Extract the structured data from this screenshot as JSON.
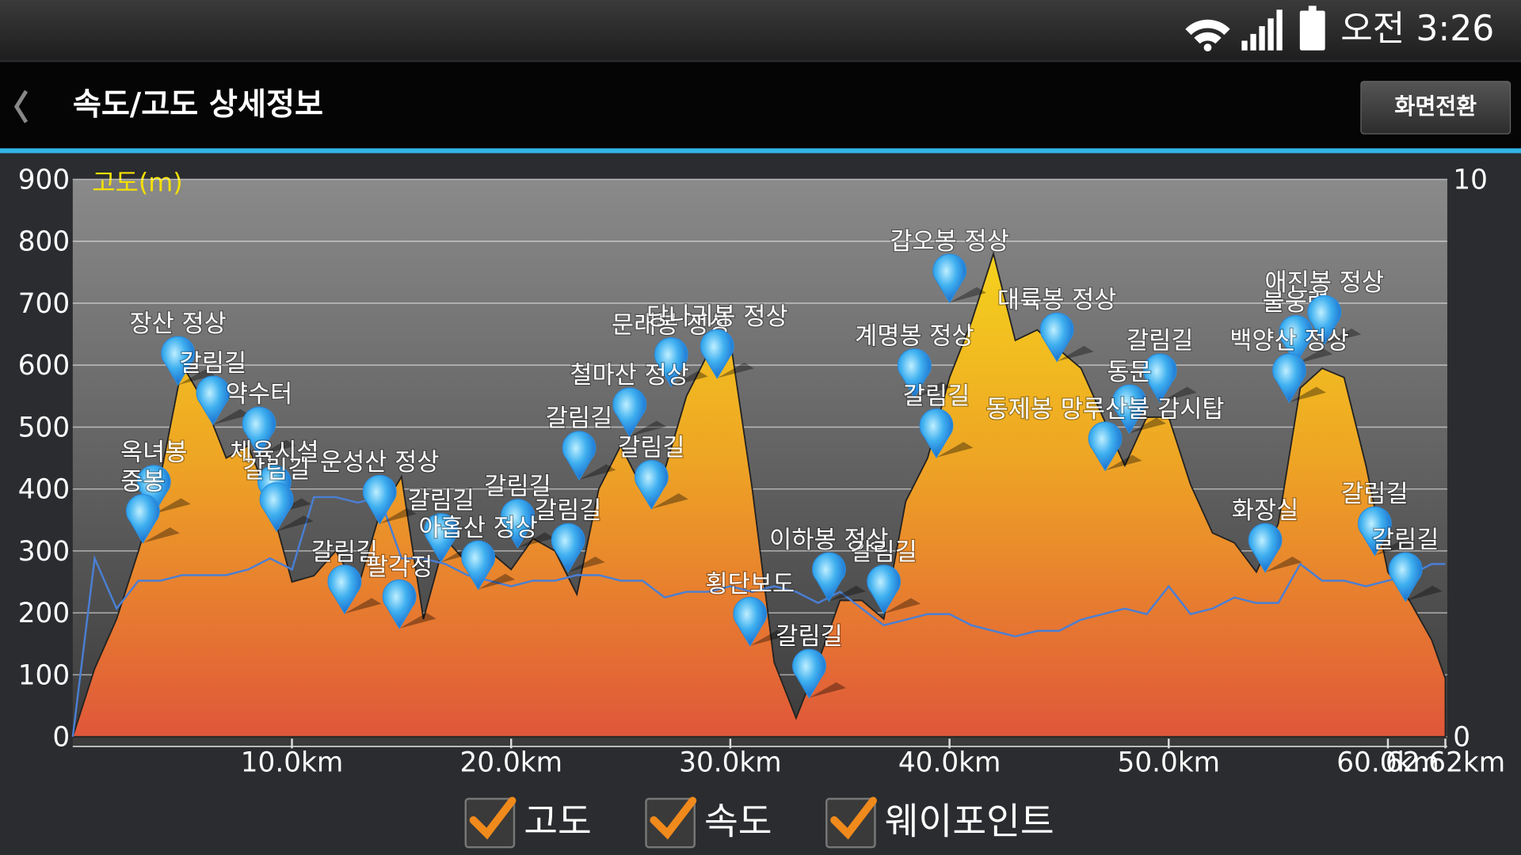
{
  "status_bar": {
    "time": "오전 3:26"
  },
  "header": {
    "title": "속도/고도 상세정보",
    "button": "화면전환"
  },
  "chart_data": {
    "type": "area",
    "y_label": "고도(m)",
    "x": [
      0,
      1,
      2,
      3,
      4,
      5,
      6,
      7,
      8,
      9,
      10,
      11,
      12,
      13,
      14,
      15,
      16,
      17,
      18,
      19,
      20,
      21,
      22,
      23,
      24,
      25,
      26,
      27,
      28,
      29,
      30,
      31,
      32,
      33,
      34,
      35,
      36,
      37,
      38,
      39,
      40,
      41,
      42,
      43,
      44,
      45,
      46,
      47,
      48,
      49,
      50,
      51,
      52,
      53,
      54,
      55,
      56,
      57,
      58,
      59,
      60,
      61,
      62,
      62.62
    ],
    "series": [
      {
        "name": "고도",
        "color": "#f2d21c",
        "values": [
          0,
          110,
          190,
          300,
          420,
          600,
          540,
          450,
          470,
          380,
          250,
          260,
          300,
          240,
          360,
          420,
          190,
          320,
          280,
          300,
          270,
          320,
          300,
          230,
          400,
          470,
          400,
          430,
          550,
          620,
          640,
          400,
          120,
          30,
          120,
          220,
          220,
          190,
          380,
          450,
          580,
          670,
          780,
          640,
          657,
          625,
          595,
          516,
          438,
          516,
          516,
          407,
          329,
          313,
          266,
          344,
          563,
          595,
          580,
          438,
          266,
          219,
          156,
          94
        ]
      },
      {
        "name": "속도",
        "color": "#4a7fd4",
        "axis": "y2",
        "values": [
          0,
          3.2,
          2.3,
          2.8,
          2.8,
          2.9,
          2.9,
          2.9,
          3.0,
          3.2,
          3.0,
          4.3,
          4.3,
          4.2,
          4.3,
          3.2,
          3.2,
          3.1,
          2.9,
          2.8,
          2.7,
          2.8,
          2.8,
          2.9,
          2.9,
          2.8,
          2.8,
          2.5,
          2.6,
          2.6,
          2.7,
          2.6,
          2.7,
          2.6,
          2.4,
          2.6,
          2.3,
          2.0,
          2.1,
          2.2,
          2.2,
          2.0,
          1.9,
          1.8,
          1.9,
          1.9,
          2.1,
          2.2,
          2.3,
          2.2,
          2.7,
          2.2,
          2.3,
          2.5,
          2.4,
          2.4,
          3.1,
          2.8,
          2.8,
          2.7,
          2.8,
          2.9,
          3.1,
          3.1
        ]
      }
    ],
    "waypoints": {
      "name": "웨이포인트",
      "color": "#2a8ee0",
      "points": [
        {
          "label": "옥녀봉",
          "x": 3.7,
          "y": 360
        },
        {
          "label": "중봉",
          "x": 3.2,
          "y": 313
        },
        {
          "label": "장산 정상",
          "x": 4.8,
          "y": 568
        },
        {
          "label": "갈림길",
          "x": 6.4,
          "y": 504
        },
        {
          "label": "약수터",
          "x": 8.5,
          "y": 454
        },
        {
          "label": "체육시설",
          "x": 9.2,
          "y": 360
        },
        {
          "label": "갈림길",
          "x": 9.3,
          "y": 332
        },
        {
          "label": "운성산 정상",
          "x": 14.0,
          "y": 344
        },
        {
          "label": "갈림길",
          "x": 12.4,
          "y": 199
        },
        {
          "label": "팔각정",
          "x": 14.9,
          "y": 175
        },
        {
          "label": "갈림길",
          "x": 16.8,
          "y": 282
        },
        {
          "label": "갈림길",
          "x": 20.3,
          "y": 305
        },
        {
          "label": "아홉산 정상",
          "x": 18.5,
          "y": 238
        },
        {
          "label": "갈림길",
          "x": 22.6,
          "y": 266
        },
        {
          "label": "갈림길",
          "x": 23.1,
          "y": 415
        },
        {
          "label": "문래봉 정상",
          "x": 27.3,
          "y": 566
        },
        {
          "label": "당나귀봉 정상",
          "x": 29.4,
          "y": 579
        },
        {
          "label": "철마산 정상",
          "x": 25.4,
          "y": 485
        },
        {
          "label": "갈림길",
          "x": 26.4,
          "y": 368
        },
        {
          "label": "이하봉 정상",
          "x": 34.5,
          "y": 219
        },
        {
          "label": "횡단보도",
          "x": 30.9,
          "y": 147
        },
        {
          "label": "갈림길",
          "x": 33.6,
          "y": 63
        },
        {
          "label": "갈림길",
          "x": 37.0,
          "y": 199
        },
        {
          "label": "계명봉 정상",
          "x": 38.4,
          "y": 548
        },
        {
          "label": "갈림길",
          "x": 39.4,
          "y": 451
        },
        {
          "label": "갑오봉 정상",
          "x": 40.0,
          "y": 701
        },
        {
          "label": "대륙봉 정상",
          "x": 44.9,
          "y": 606
        },
        {
          "label": "갈림길",
          "x": 49.6,
          "y": 540
        },
        {
          "label": "동문",
          "x": 48.2,
          "y": 490
        },
        {
          "label": "동제봉 망루산불 감시탑",
          "x": 47.1,
          "y": 430
        },
        {
          "label": "불웅령",
          "x": 55.8,
          "y": 602
        },
        {
          "label": "애진봉 정상",
          "x": 57.1,
          "y": 634
        },
        {
          "label": "백양산 정상",
          "x": 55.5,
          "y": 540
        },
        {
          "label": "화장실",
          "x": 54.4,
          "y": 266
        },
        {
          "label": "갈림길",
          "x": 59.4,
          "y": 293
        },
        {
          "label": "갈림길",
          "x": 60.8,
          "y": 219
        }
      ]
    },
    "xlim": [
      0,
      62.62
    ],
    "xticks": [
      {
        "value": 10,
        "label": "10.0km"
      },
      {
        "value": 20,
        "label": "20.0km"
      },
      {
        "value": 30,
        "label": "30.0km"
      },
      {
        "value": 40,
        "label": "40.0km"
      },
      {
        "value": 50,
        "label": "50.0km"
      },
      {
        "value": 60,
        "label": "60.0km"
      },
      {
        "value": 62.62,
        "label": "62.62km"
      }
    ],
    "ylim": [
      0,
      900
    ],
    "yticks": [
      0,
      100,
      200,
      300,
      400,
      500,
      600,
      700,
      800,
      900
    ],
    "y2lim": [
      0,
      10
    ],
    "y2ticks": [
      0,
      10
    ],
    "grid": true
  }
}
